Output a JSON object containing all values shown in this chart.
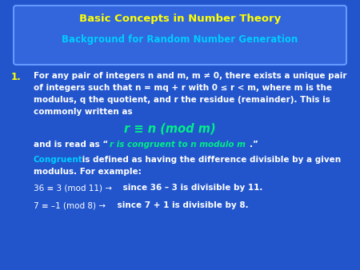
{
  "title_line1": "Basic Concepts in Number Theory",
  "title_line2": "Background for Random Number Generation",
  "title_color": "#FFFF00",
  "subtitle_color": "#00CCFF",
  "bg_color": "#2255CC",
  "header_box_color": "#3366DD",
  "header_box_edge": "#6699FF",
  "white_text": "#FFFFFF",
  "green_text": "#00EE88",
  "cyan_text": "#00CCFF",
  "yellow_text": "#FFFF00",
  "formula": "r ≡ n (mod m)"
}
